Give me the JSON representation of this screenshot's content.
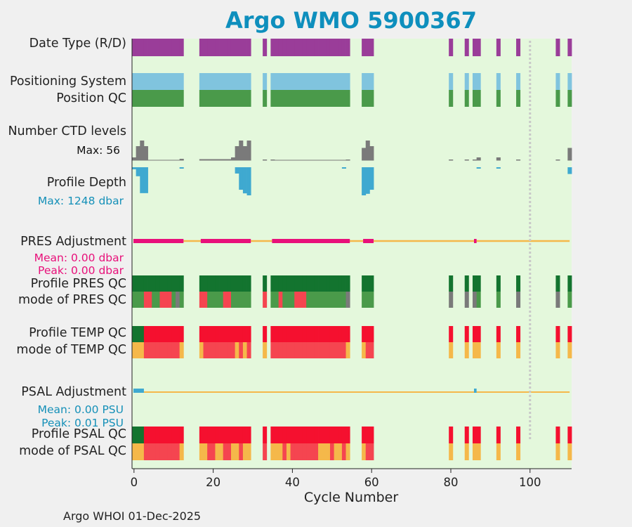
{
  "title": "Argo WMO 5900367",
  "footer": "Argo WHOI 01-Dec-2025",
  "labels": {
    "date_type": "Date Type (R/D)",
    "positioning_system": "Positioning System",
    "position_qc": "Position QC",
    "number_ctd_levels": "Number CTD levels",
    "ctd_max": "Max: 56",
    "profile_depth": "Profile Depth",
    "depth_max": "Max: 1248 dbar",
    "pres_adjustment": "PRES Adjustment",
    "pres_mean": "Mean: 0.00 dbar",
    "pres_peak": "Peak: 0.00 dbar",
    "profile_pres_qc": "Profile PRES QC",
    "mode_pres_qc": "mode of PRES QC",
    "profile_temp_qc": "Profile TEMP QC",
    "mode_temp_qc": "mode of TEMP QC",
    "psal_adjustment": "PSAL Adjustment",
    "psal_mean": "Mean: 0.00 PSU",
    "psal_peak": "Peak: 0.01 PSU",
    "profile_psal_qc": "Profile PSAL QC",
    "mode_psal_qc": "mode of PSAL QC"
  },
  "colors": {
    "title": "#0e8fbd",
    "plot_bg": "#e4f8dc",
    "purple": "#9a3d99",
    "lightblue": "#80c4de",
    "green": "#4a9a4a",
    "darkgreen": "#13742f",
    "gray": "#7a7a7a",
    "depth": "#3fa9d0",
    "magenta": "#e8107a",
    "orange": "#f5b84a",
    "red": "#f5102f",
    "lightred": "#f54550",
    "adj_text": "#1590b8"
  },
  "chart_data": {
    "type": "timeline",
    "xlabel": "Cycle Number",
    "xlim": [
      -0.5,
      110.5
    ],
    "xticks": [
      0,
      20,
      40,
      60,
      80,
      100
    ],
    "xtick_labels": [
      "0",
      "20",
      "40",
      "60",
      "80",
      "100"
    ],
    "vline_at": 100,
    "cycle_runs": [
      [
        0,
        12
      ],
      [
        17,
        29
      ],
      [
        33,
        33
      ],
      [
        35,
        54
      ],
      [
        58,
        60
      ],
      [
        80,
        80
      ],
      [
        84,
        84
      ],
      [
        86,
        87
      ],
      [
        92,
        92
      ],
      [
        97,
        97
      ],
      [
        107,
        107
      ],
      [
        110,
        110
      ]
    ],
    "ctd_levels": {
      "0": 8,
      "1": 40,
      "2": 56,
      "3": 40,
      "12": 4,
      "17": 3,
      "18": 3,
      "19": 3,
      "20": 3,
      "21": 3,
      "22": 3,
      "23": 3,
      "24": 3,
      "25": 8,
      "26": 40,
      "27": 56,
      "28": 40,
      "29": 56,
      "33": 2,
      "35": 2,
      "54": 2,
      "58": 35,
      "59": 56,
      "60": 40,
      "80": 2,
      "84": 2,
      "86": 2,
      "87": 8,
      "92": 8,
      "97": 2,
      "107": 2,
      "110": 35
    },
    "profile_depth_dbar": {
      "0": 90,
      "1": 400,
      "2": 1150,
      "3": 1150,
      "12": 40,
      "26": 280,
      "27": 1000,
      "28": 1160,
      "29": 1248,
      "53": 40,
      "58": 1248,
      "59": 1180,
      "60": 1000,
      "87": 40,
      "92": 40,
      "110": 300
    },
    "pres_adjustment_dbar": {
      "mean": 0.0,
      "peak": 0.0,
      "highlight_runs": [
        [
          0,
          12
        ],
        [
          17,
          29
        ],
        [
          35,
          54
        ],
        [
          58,
          60
        ],
        [
          86,
          86
        ]
      ]
    },
    "psal_adjustment_psu": {
      "mean": 0.0,
      "peak": 0.01,
      "highlight_runs": [
        [
          0,
          2
        ],
        [
          86,
          86
        ]
      ]
    },
    "position_qc": {
      "default": "green"
    },
    "positioning_system": {
      "default": "lightblue"
    },
    "date_type": {
      "default": "purple"
    },
    "profile_pres_qc": {
      "default": "darkgreen"
    },
    "mode_pres_qc": {
      "default": "green",
      "overrides": {
        "3": "lightred",
        "4": "lightred",
        "7": "lightred",
        "8": "lightred",
        "9": "lightred",
        "11": "gray",
        "17": "lightred",
        "18": "lightred",
        "23": "lightred",
        "24": "lightred",
        "33": "lightred",
        "37": "lightred",
        "41": "lightred",
        "42": "lightred",
        "43": "lightred",
        "54": "gray",
        "80": "gray",
        "84": "gray",
        "86": "gray",
        "97": "gray",
        "107": "gray"
      }
    },
    "profile_temp_qc": {
      "default": "red",
      "overrides": {
        "0": "darkgreen",
        "1": "darkgreen",
        "2": "darkgreen"
      }
    },
    "mode_temp_qc": {
      "default": "lightred",
      "overrides": {
        "0": "orange",
        "1": "orange",
        "2": "orange",
        "12": "orange",
        "17": "orange",
        "26": "orange",
        "28": "orange",
        "33": "orange",
        "54": "orange",
        "58": "orange",
        "80": "orange",
        "84": "orange",
        "86": "orange",
        "87": "orange",
        "92": "orange",
        "97": "orange",
        "107": "orange",
        "110": "orange"
      }
    },
    "profile_psal_qc": {
      "default": "red",
      "overrides": {
        "0": "darkgreen",
        "1": "darkgreen",
        "2": "darkgreen"
      }
    },
    "mode_psal_qc": {
      "default": "lightred",
      "overrides": {
        "0": "orange",
        "1": "orange",
        "2": "orange",
        "12": "orange",
        "17": "orange",
        "18": "orange",
        "21": "orange",
        "22": "orange",
        "25": "orange",
        "26": "orange",
        "28": "orange",
        "29": "orange",
        "35": "orange",
        "36": "orange",
        "37": "orange",
        "39": "orange",
        "47": "orange",
        "48": "orange",
        "49": "orange",
        "51": "orange",
        "52": "orange",
        "54": "orange",
        "58": "orange",
        "80": "orange",
        "84": "orange",
        "86": "orange",
        "87": "orange",
        "92": "orange",
        "97": "orange",
        "107": "orange",
        "110": "orange"
      }
    }
  }
}
